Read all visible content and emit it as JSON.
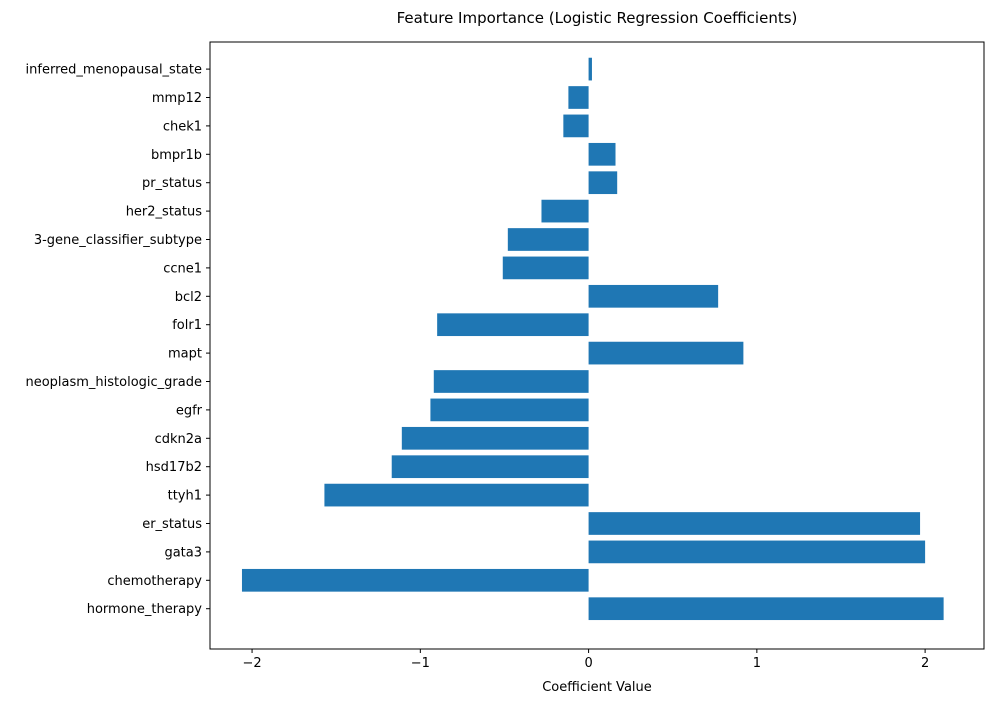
{
  "chart_data": {
    "type": "bar",
    "orientation": "horizontal",
    "title": "Feature Importance (Logistic Regression Coefficients)",
    "xlabel": "Coefficient Value",
    "ylabel": "",
    "xlim": [
      -2.25,
      2.35
    ],
    "xticks": [
      -2,
      -1,
      0,
      1,
      2
    ],
    "xtick_labels": [
      "−2",
      "−1",
      "0",
      "1",
      "2"
    ],
    "grid": false,
    "bar_color": "#1f77b4",
    "categories": [
      "hormone_therapy",
      "chemotherapy",
      "gata3",
      "er_status",
      "ttyh1",
      "hsd17b2",
      "cdkn2a",
      "egfr",
      "neoplasm_histologic_grade",
      "mapt",
      "folr1",
      "bcl2",
      "ccne1",
      "3-gene_classifier_subtype",
      "her2_status",
      "pr_status",
      "bmpr1b",
      "chek1",
      "mmp12",
      "inferred_menopausal_state"
    ],
    "values": [
      2.11,
      -2.06,
      2.0,
      1.97,
      -1.57,
      -1.17,
      -1.11,
      -0.94,
      -0.92,
      0.92,
      -0.9,
      0.77,
      -0.51,
      -0.48,
      -0.28,
      0.17,
      0.16,
      -0.15,
      -0.12,
      0.02
    ]
  }
}
